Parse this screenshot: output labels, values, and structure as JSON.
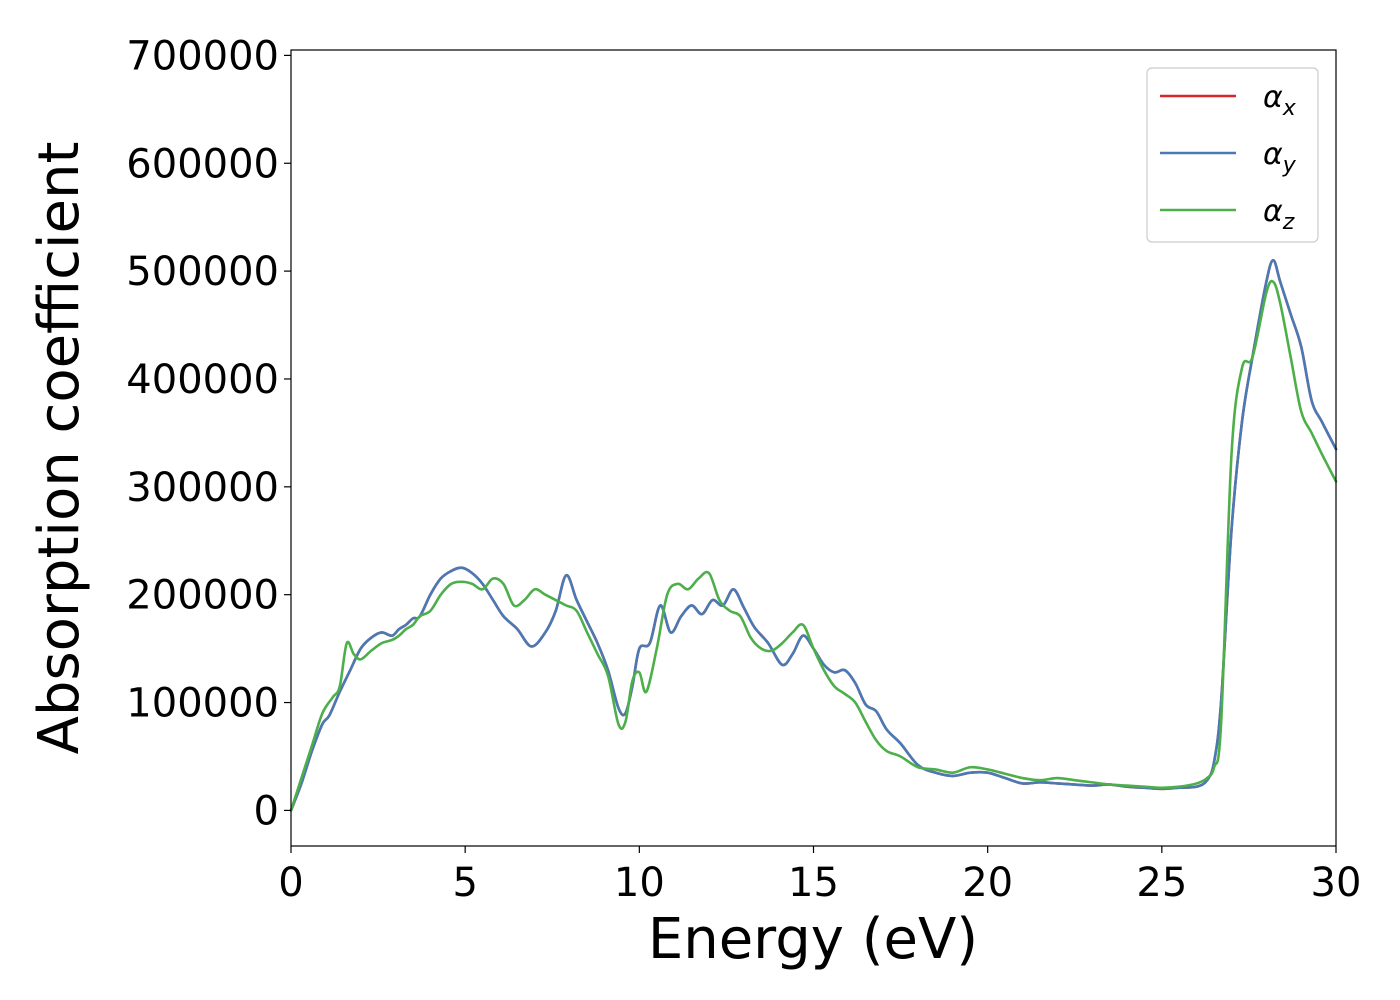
{
  "chart_data": {
    "type": "line",
    "xlabel": "Energy (eV)",
    "ylabel": "Absorption coefficient",
    "xlim": [
      0,
      30
    ],
    "ylim": [
      -33000,
      705000
    ],
    "xticks": [
      0,
      5,
      10,
      15,
      20,
      25,
      30
    ],
    "xtick_labels": [
      "0",
      "5",
      "10",
      "15",
      "20",
      "25",
      "30"
    ],
    "yticks": [
      0,
      100000,
      200000,
      300000,
      400000,
      500000,
      600000,
      700000
    ],
    "ytick_labels": [
      "0",
      "100000",
      "200000",
      "300000",
      "400000",
      "500000",
      "600000",
      "700000"
    ],
    "grid": false,
    "legend_position": "top-right",
    "series": [
      {
        "name": "α_x",
        "label_base": "α",
        "label_sub": "x",
        "color": "#d62728",
        "x": [
          0,
          0.3,
          0.6,
          0.9,
          1.1,
          1.4,
          1.7,
          2.0,
          2.3,
          2.6,
          2.9,
          3.1,
          3.3,
          3.5,
          3.7,
          4.0,
          4.3,
          4.6,
          4.9,
          5.2,
          5.5,
          5.8,
          6.1,
          6.5,
          6.9,
          7.3,
          7.6,
          7.9,
          8.2,
          8.5,
          8.8,
          9.1,
          9.4,
          9.6,
          9.8,
          10.0,
          10.3,
          10.6,
          10.9,
          11.2,
          11.5,
          11.8,
          12.1,
          12.4,
          12.7,
          13.0,
          13.3,
          13.7,
          14.1,
          14.4,
          14.7,
          15.0,
          15.3,
          15.6,
          15.9,
          16.2,
          16.5,
          16.8,
          17.1,
          17.5,
          18.0,
          18.5,
          19.0,
          19.5,
          20.0,
          20.5,
          21.0,
          21.5,
          22.0,
          22.5,
          23.0,
          23.5,
          24.0,
          24.5,
          25.0,
          25.5,
          26.0,
          26.3,
          26.5,
          26.7,
          27.0,
          27.3,
          27.6,
          28.0,
          28.2,
          28.4,
          28.7,
          29.0,
          29.3,
          29.6,
          30.0
        ],
        "y": [
          0,
          25000,
          55000,
          80000,
          88000,
          110000,
          130000,
          150000,
          160000,
          165000,
          162000,
          168000,
          172000,
          178000,
          180000,
          200000,
          215000,
          222000,
          225000,
          220000,
          210000,
          195000,
          180000,
          168000,
          152000,
          165000,
          185000,
          218000,
          195000,
          175000,
          155000,
          130000,
          95000,
          90000,
          115000,
          150000,
          155000,
          190000,
          165000,
          180000,
          190000,
          182000,
          195000,
          190000,
          205000,
          188000,
          170000,
          155000,
          135000,
          145000,
          162000,
          150000,
          135000,
          128000,
          130000,
          118000,
          98000,
          92000,
          75000,
          62000,
          42000,
          35000,
          32000,
          35000,
          35000,
          30000,
          25000,
          26000,
          25000,
          24000,
          23000,
          24000,
          22000,
          21000,
          20000,
          21000,
          22000,
          28000,
          45000,
          100000,
          260000,
          360000,
          420000,
          490000,
          510000,
          490000,
          460000,
          430000,
          380000,
          360000,
          335000
        ]
      },
      {
        "name": "α_y",
        "label_base": "α",
        "label_sub": "y",
        "color": "#4a7ab5",
        "x": [
          0,
          0.3,
          0.6,
          0.9,
          1.1,
          1.4,
          1.7,
          2.0,
          2.3,
          2.6,
          2.9,
          3.1,
          3.3,
          3.5,
          3.7,
          4.0,
          4.3,
          4.6,
          4.9,
          5.2,
          5.5,
          5.8,
          6.1,
          6.5,
          6.9,
          7.3,
          7.6,
          7.9,
          8.2,
          8.5,
          8.8,
          9.1,
          9.4,
          9.6,
          9.8,
          10.0,
          10.3,
          10.6,
          10.9,
          11.2,
          11.5,
          11.8,
          12.1,
          12.4,
          12.7,
          13.0,
          13.3,
          13.7,
          14.1,
          14.4,
          14.7,
          15.0,
          15.3,
          15.6,
          15.9,
          16.2,
          16.5,
          16.8,
          17.1,
          17.5,
          18.0,
          18.5,
          19.0,
          19.5,
          20.0,
          20.5,
          21.0,
          21.5,
          22.0,
          22.5,
          23.0,
          23.5,
          24.0,
          24.5,
          25.0,
          25.5,
          26.0,
          26.3,
          26.5,
          26.7,
          27.0,
          27.3,
          27.6,
          28.0,
          28.2,
          28.4,
          28.7,
          29.0,
          29.3,
          29.6,
          30.0
        ],
        "y": [
          0,
          25000,
          55000,
          80000,
          88000,
          110000,
          130000,
          150000,
          160000,
          165000,
          162000,
          168000,
          172000,
          178000,
          180000,
          200000,
          215000,
          222000,
          225000,
          220000,
          210000,
          195000,
          180000,
          168000,
          152000,
          165000,
          185000,
          218000,
          195000,
          175000,
          155000,
          130000,
          95000,
          90000,
          115000,
          150000,
          155000,
          190000,
          165000,
          180000,
          190000,
          182000,
          195000,
          190000,
          205000,
          188000,
          170000,
          155000,
          135000,
          145000,
          162000,
          150000,
          135000,
          128000,
          130000,
          118000,
          98000,
          92000,
          75000,
          62000,
          42000,
          35000,
          32000,
          35000,
          35000,
          30000,
          25000,
          26000,
          25000,
          24000,
          23000,
          24000,
          22000,
          21000,
          20000,
          21000,
          22000,
          28000,
          45000,
          100000,
          260000,
          360000,
          420000,
          490000,
          510000,
          490000,
          460000,
          430000,
          380000,
          360000,
          335000
        ]
      },
      {
        "name": "α_z",
        "label_base": "α",
        "label_sub": "z",
        "color": "#4daf4a",
        "x": [
          0,
          0.3,
          0.6,
          0.9,
          1.2,
          1.4,
          1.6,
          1.8,
          2.0,
          2.3,
          2.6,
          2.9,
          3.1,
          3.3,
          3.5,
          3.7,
          4.0,
          4.3,
          4.6,
          4.9,
          5.2,
          5.5,
          5.8,
          6.1,
          6.4,
          6.7,
          7.0,
          7.3,
          7.6,
          7.9,
          8.2,
          8.5,
          8.8,
          9.1,
          9.4,
          9.6,
          9.8,
          10.0,
          10.2,
          10.5,
          10.8,
          11.1,
          11.4,
          11.7,
          12.0,
          12.3,
          12.6,
          12.9,
          13.2,
          13.5,
          13.8,
          14.1,
          14.4,
          14.7,
          15.0,
          15.3,
          15.6,
          15.9,
          16.2,
          16.5,
          16.8,
          17.1,
          17.5,
          18.0,
          18.5,
          19.0,
          19.5,
          20.0,
          20.5,
          21.0,
          21.5,
          22.0,
          22.5,
          23.0,
          23.5,
          24.0,
          24.5,
          25.0,
          25.5,
          26.0,
          26.3,
          26.5,
          26.7,
          27.0,
          27.3,
          27.6,
          28.0,
          28.2,
          28.4,
          28.7,
          29.0,
          29.3,
          29.6,
          30.0
        ],
        "y": [
          0,
          30000,
          60000,
          90000,
          105000,
          115000,
          155000,
          145000,
          140000,
          148000,
          155000,
          158000,
          162000,
          168000,
          172000,
          180000,
          185000,
          200000,
          210000,
          212000,
          210000,
          205000,
          215000,
          210000,
          190000,
          195000,
          205000,
          200000,
          195000,
          190000,
          185000,
          165000,
          145000,
          125000,
          80000,
          82000,
          120000,
          128000,
          110000,
          150000,
          200000,
          210000,
          205000,
          215000,
          220000,
          195000,
          185000,
          180000,
          160000,
          150000,
          148000,
          155000,
          165000,
          172000,
          150000,
          130000,
          115000,
          108000,
          100000,
          82000,
          65000,
          55000,
          50000,
          40000,
          38000,
          35000,
          40000,
          38000,
          34000,
          30000,
          28000,
          30000,
          28000,
          26000,
          24000,
          23000,
          22000,
          21000,
          22000,
          25000,
          30000,
          40000,
          80000,
          330000,
          410000,
          420000,
          480000,
          490000,
          470000,
          420000,
          370000,
          350000,
          330000,
          305000
        ]
      }
    ]
  }
}
